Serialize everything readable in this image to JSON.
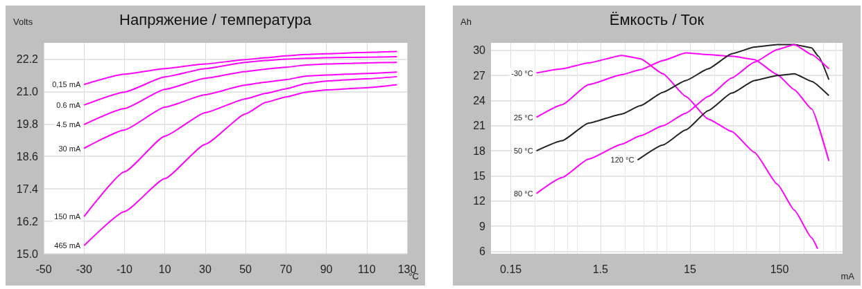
{
  "chart_data": [
    {
      "type": "line",
      "title": "Напряжение / температура",
      "xlabel": "°C",
      "ylabel": "Volts",
      "x": [
        -30,
        -10,
        10,
        30,
        50,
        60,
        70,
        80,
        90,
        110,
        125
      ],
      "series": [
        {
          "name": "0,15 mA",
          "color": "#ff00ff",
          "values": [
            21.26,
            21.64,
            21.85,
            22.02,
            22.18,
            22.25,
            22.32,
            22.37,
            22.4,
            22.45,
            22.48
          ]
        },
        {
          "name": "0.6 mA",
          "color": "#ff00ff",
          "values": [
            20.5,
            20.98,
            21.54,
            21.85,
            22.08,
            22.15,
            22.2,
            22.23,
            22.25,
            22.27,
            22.29
          ]
        },
        {
          "name": "4.5 mA",
          "color": "#ff00ff",
          "values": [
            19.78,
            20.37,
            21.08,
            21.49,
            21.74,
            21.83,
            21.9,
            21.98,
            22.02,
            22.06,
            22.08
          ]
        },
        {
          "name": "30 mA",
          "color": "#ff00ff",
          "values": [
            18.9,
            19.58,
            20.42,
            20.88,
            21.24,
            21.35,
            21.44,
            21.57,
            21.61,
            21.67,
            21.72
          ]
        },
        {
          "name": "150 mA",
          "color": "#ff00ff",
          "values": [
            16.38,
            18.03,
            19.35,
            20.22,
            20.73,
            20.93,
            21.1,
            21.3,
            21.39,
            21.47,
            21.55
          ]
        },
        {
          "name": "465 mA",
          "color": "#ff00ff",
          "values": [
            15.3,
            16.56,
            17.78,
            19.05,
            20.17,
            20.6,
            20.8,
            20.98,
            21.06,
            21.14,
            21.25
          ]
        }
      ],
      "xlim": [
        -50,
        130
      ],
      "xticks": [
        -50,
        -30,
        -10,
        10,
        30,
        50,
        70,
        90,
        110,
        130
      ],
      "ylim": [
        15.0,
        22.8
      ],
      "yticks": [
        {
          "value": 15.0,
          "label": "15.0"
        },
        16.2,
        17.4,
        18.6,
        19.8,
        {
          "value": 21.0,
          "label": "21.0"
        },
        22.2
      ],
      "grid": true,
      "legend": false,
      "marker": "none"
    },
    {
      "type": "line",
      "title": "Ёмкость / Ток",
      "xlabel": "mA",
      "ylabel": "Ah",
      "log": "x",
      "series": [
        {
          "name": "-30 °C",
          "color": "#ff00ff",
          "x": [
            0.29,
            0.56,
            1.1,
            2.6,
            4.2,
            7.5,
            13.5,
            24,
            44,
            79,
            142,
            220,
            343,
            400
          ],
          "values": [
            27.3,
            27.8,
            28.5,
            29.4,
            29.0,
            27.2,
            24.5,
            21.8,
            20.3,
            17.8,
            14.0,
            10.9,
            7.6,
            6.3
          ]
        },
        {
          "name": "25 °C",
          "color": "#ff00ff",
          "x": [
            0.29,
            0.56,
            1.1,
            2.6,
            4.2,
            7.5,
            13.5,
            24,
            44,
            79,
            142,
            220,
            343,
            534
          ],
          "values": [
            22.0,
            23.5,
            25.9,
            27.1,
            27.7,
            28.8,
            29.7,
            29.5,
            29.3,
            28.9,
            27.1,
            25.3,
            23.0,
            16.8
          ]
        },
        {
          "name": "50 °C",
          "color": "#222222",
          "x": [
            0.29,
            0.56,
            1.1,
            2.6,
            4.2,
            7.5,
            13.5,
            24,
            44,
            79,
            142,
            220,
            343,
            408,
            534
          ],
          "values": [
            18.0,
            19.2,
            21.3,
            22.4,
            23.4,
            25.0,
            26.4,
            27.8,
            29.6,
            30.4,
            30.7,
            30.7,
            30.3,
            29.3,
            26.5
          ]
        },
        {
          "name": "80 °C",
          "color": "#ff00ff",
          "x": [
            0.29,
            0.56,
            1.1,
            2.6,
            4.2,
            7.5,
            13.5,
            24,
            44,
            79,
            142,
            220,
            343,
            534
          ],
          "values": [
            12.9,
            14.8,
            17.0,
            18.8,
            19.8,
            21.0,
            22.5,
            24.5,
            26.7,
            28.6,
            30.1,
            30.7,
            29.5,
            27.8
          ]
        },
        {
          "name": "120 °C",
          "color": "#222222",
          "x": [
            3.9,
            7.5,
            13.5,
            24,
            44,
            79,
            142,
            220,
            343,
            534
          ],
          "values": [
            16.9,
            18.7,
            20.5,
            22.8,
            24.9,
            26.4,
            27.0,
            27.2,
            26.3,
            24.6
          ]
        }
      ],
      "xlim": [
        0.09,
        760
      ],
      "xticks": [
        0.15,
        1.5,
        15,
        150
      ],
      "ylim": [
        5.7,
        30.9
      ],
      "yticks": [
        6,
        9,
        12,
        15,
        18,
        21,
        24,
        27,
        30
      ],
      "grid": true,
      "legend": false,
      "marker": "none"
    }
  ]
}
